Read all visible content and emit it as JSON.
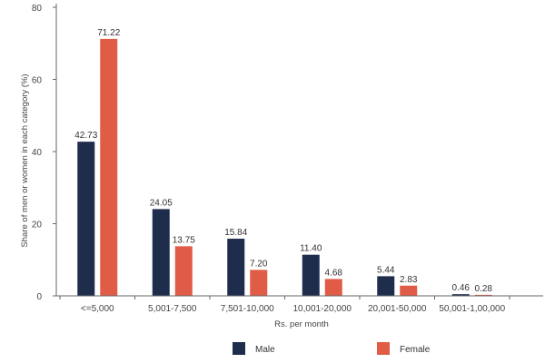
{
  "chart_data": {
    "type": "bar",
    "categories": [
      "<=5,000",
      "5,001-7,500",
      "7,501-10,000",
      "10,001-20,000",
      "20,001-50,000",
      "50,001-1,00,000"
    ],
    "series": [
      {
        "name": "Male",
        "values": [
          42.73,
          24.05,
          15.84,
          11.4,
          5.44,
          0.46
        ],
        "labels": [
          "42.73",
          "24.05",
          "15.84",
          "11.40",
          "5.44",
          "0.46"
        ],
        "color": "#1f2d4d"
      },
      {
        "name": "Female",
        "values": [
          71.22,
          13.75,
          7.2,
          4.68,
          2.83,
          0.28
        ],
        "labels": [
          "71.22",
          "13.75",
          "7.20",
          "4.68",
          "2.83",
          "0.28"
        ],
        "color": "#e05c47"
      }
    ],
    "xlabel": "Rs. per month",
    "ylabel": "Share of men or women in each category (%)",
    "ylim": [
      0,
      80
    ],
    "yticks": [
      0,
      20,
      40,
      60,
      80
    ],
    "grid": false,
    "legend_position": "bottom"
  }
}
